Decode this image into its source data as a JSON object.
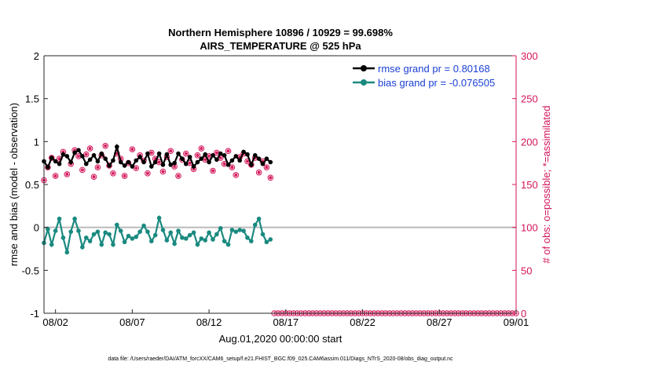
{
  "colors": {
    "rmse": "#000000",
    "bias": "#1a8a80",
    "obs": "#d4145a",
    "zero_line": "#bbbbbb",
    "axis": "#262626"
  },
  "chart_data": {
    "type": "line",
    "title": "Northern Hemisphere 10896 / 10929 = 99.698%",
    "subtitle": "AIRS_TEMPERATURE @ 525 hPa",
    "xlabel": "Aug.01,2020 00:00:00 start",
    "ylabel": "rmse and bias (model - observation)",
    "y2label": "# of obs: o=possible; *=assimilated",
    "footnote": "data file: /Users/raeder/DAI/ATM_forcXX/CAM6_setup/f.e21.FHIST_BGC.f09_025.CAM6assim.011/Diags_NTrS_2020-08/obs_diag_output.nc",
    "x_ticks": [
      {
        "day": 2,
        "label": "08/02"
      },
      {
        "day": 7,
        "label": "08/07"
      },
      {
        "day": 12,
        "label": "08/12"
      },
      {
        "day": 17,
        "label": "08/17"
      },
      {
        "day": 22,
        "label": "08/22"
      },
      {
        "day": 27,
        "label": "08/27"
      },
      {
        "day": 32,
        "label": "09/01"
      }
    ],
    "xlim": [
      1.25,
      32
    ],
    "ylim": [
      -1,
      2
    ],
    "y_ticks": [
      "2",
      "1.5",
      "1",
      "0.5",
      "0",
      "-0.5",
      "-1"
    ],
    "y2lim": [
      0,
      300
    ],
    "y2_ticks": [
      "300",
      "250",
      "200",
      "150",
      "100",
      "50",
      "0"
    ],
    "grid": false,
    "legend_position": "top-right",
    "x": [
      1.25,
      1.5,
      1.75,
      2.0,
      2.25,
      2.5,
      2.75,
      3.0,
      3.25,
      3.5,
      3.75,
      4.0,
      4.25,
      4.5,
      4.75,
      5.0,
      5.25,
      5.5,
      5.75,
      6.0,
      6.25,
      6.5,
      6.75,
      7.0,
      7.25,
      7.5,
      7.75,
      8.0,
      8.25,
      8.5,
      8.75,
      9.0,
      9.25,
      9.5,
      9.75,
      10.0,
      10.25,
      10.5,
      10.75,
      11.0,
      11.25,
      11.5,
      11.75,
      12.0,
      12.25,
      12.5,
      12.75,
      13.0,
      13.25,
      13.5,
      13.75,
      14.0,
      14.25,
      14.5,
      14.75,
      15.0,
      15.25,
      15.5,
      15.75,
      16.0
    ],
    "series": [
      {
        "name": "rmse grand pr = 0.80168",
        "values": [
          0.77,
          0.7,
          0.81,
          0.77,
          0.74,
          0.85,
          0.83,
          0.76,
          0.87,
          0.9,
          0.83,
          0.74,
          0.79,
          0.84,
          0.77,
          0.86,
          0.8,
          0.72,
          0.78,
          0.94,
          0.76,
          0.72,
          0.76,
          0.71,
          0.78,
          0.82,
          0.76,
          0.86,
          0.71,
          0.76,
          0.86,
          0.73,
          0.85,
          0.73,
          0.75,
          0.86,
          0.8,
          0.74,
          0.82,
          0.71,
          0.76,
          0.8,
          0.85,
          0.76,
          0.84,
          0.79,
          0.86,
          0.84,
          0.73,
          0.78,
          0.83,
          0.78,
          0.88,
          0.85,
          0.73,
          0.84,
          0.8,
          0.74,
          0.8,
          0.76
        ]
      },
      {
        "name": "bias grand pr = -0.076505",
        "values": [
          -0.18,
          -0.02,
          -0.2,
          -0.04,
          0.1,
          -0.12,
          -0.29,
          -0.05,
          0.1,
          -0.04,
          -0.23,
          -0.12,
          -0.16,
          -0.08,
          -0.05,
          -0.2,
          -0.06,
          -0.08,
          -0.2,
          0.03,
          -0.04,
          -0.17,
          -0.1,
          -0.13,
          -0.11,
          -0.05,
          0.02,
          -0.05,
          -0.16,
          -0.09,
          0.11,
          -0.03,
          -0.15,
          -0.06,
          -0.19,
          -0.04,
          -0.12,
          -0.13,
          -0.09,
          -0.06,
          -0.2,
          -0.13,
          -0.15,
          -0.06,
          -0.14,
          -0.08,
          -0.01,
          -0.16,
          -0.2,
          -0.03,
          -0.05,
          -0.03,
          -0.04,
          -0.12,
          -0.16,
          0.03,
          0.1,
          -0.08,
          -0.17,
          -0.14
        ]
      },
      {
        "name": "obs possible",
        "axis": "right",
        "values": [
          155,
          170,
          181,
          160,
          180,
          188,
          162,
          174,
          190,
          183,
          167,
          185,
          192,
          159,
          170,
          184,
          195,
          172,
          163,
          186,
          180,
          160,
          175,
          191,
          169,
          184,
          178,
          163,
          187,
          180,
          176,
          165,
          182,
          189,
          171,
          160,
          179,
          186,
          175,
          168,
          184,
          192,
          179,
          183,
          166,
          187,
          181,
          174,
          189,
          170,
          161,
          182,
          186,
          177,
          173,
          181,
          164,
          177,
          170,
          158
        ]
      },
      {
        "name": "obs assimilated",
        "axis": "right",
        "values": [
          155,
          170,
          181,
          160,
          180,
          188,
          162,
          174,
          190,
          183,
          167,
          185,
          192,
          159,
          170,
          184,
          195,
          172,
          163,
          186,
          180,
          160,
          175,
          191,
          169,
          184,
          178,
          163,
          187,
          180,
          176,
          165,
          182,
          189,
          171,
          160,
          179,
          186,
          175,
          168,
          184,
          192,
          179,
          183,
          166,
          187,
          181,
          174,
          189,
          170,
          161,
          182,
          186,
          177,
          173,
          181,
          164,
          177,
          170,
          158
        ]
      }
    ],
    "empty_x": [
      16.25,
      16.5,
      16.75,
      17.0,
      17.25,
      17.5,
      17.75,
      18.0,
      18.25,
      18.5,
      18.75,
      19.0,
      19.25,
      19.5,
      19.75,
      20.0,
      20.25,
      20.5,
      20.75,
      21.0,
      21.25,
      21.5,
      21.75,
      22.0,
      22.25,
      22.5,
      22.75,
      23.0,
      23.25,
      23.5,
      23.75,
      24.0,
      24.25,
      24.5,
      24.75,
      25.0,
      25.25,
      25.5,
      25.75,
      26.0,
      26.25,
      26.5,
      26.75,
      27.0,
      27.25,
      27.5,
      27.75,
      28.0,
      28.25,
      28.5,
      28.75,
      29.0,
      29.25,
      29.5,
      29.75,
      30.0,
      30.25,
      30.5,
      30.75,
      31.0,
      31.25,
      31.5,
      31.75,
      32.0
    ],
    "empty_count": 0
  }
}
